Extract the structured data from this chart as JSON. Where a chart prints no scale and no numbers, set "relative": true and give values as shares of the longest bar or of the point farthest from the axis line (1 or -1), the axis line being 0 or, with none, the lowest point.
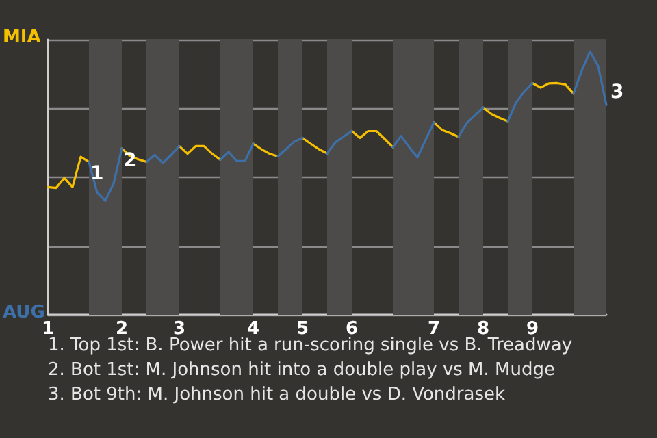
{
  "chart_data": {
    "type": "line",
    "relative": true,
    "categories": [
      "1",
      null,
      null,
      null,
      null,
      null,
      null,
      null,
      null,
      "2",
      null,
      null,
      null,
      null,
      null,
      null,
      "3",
      null,
      null,
      null,
      null,
      null,
      null,
      null,
      null,
      "4",
      null,
      null,
      null,
      null,
      null,
      "5",
      null,
      null,
      null,
      null,
      null,
      "6",
      null,
      null,
      null,
      null,
      null,
      null,
      null,
      null,
      null,
      "7",
      null,
      null,
      null,
      null,
      null,
      "8",
      null,
      null,
      null,
      null,
      null,
      "9",
      null,
      null,
      null,
      null,
      null,
      null,
      null,
      null,
      null
    ],
    "series": [
      {
        "name": "MIA",
        "color": "#f5c000",
        "values": [
          0.485,
          0.482,
          0.52,
          0.485,
          0.6,
          0.581,
          null,
          null,
          null,
          0.632,
          0.603,
          0.591,
          0.581,
          null,
          null,
          null,
          0.641,
          0.612,
          0.641,
          0.641,
          0.612,
          0.589,
          null,
          null,
          null,
          0.65,
          0.629,
          0.612,
          0.602,
          null,
          null,
          0.672,
          0.65,
          0.629,
          0.613,
          null,
          null,
          0.698,
          0.672,
          0.698,
          0.698,
          0.668,
          0.637,
          null,
          null,
          null,
          null,
          0.731,
          0.702,
          0.69,
          0.676,
          null,
          null,
          0.787,
          0.763,
          0.748,
          0.735,
          null,
          null,
          0.88,
          0.863,
          0.879,
          0.88,
          0.875,
          0.84,
          null,
          null,
          null,
          null
        ]
      },
      {
        "name": "AUG",
        "color": "#3d6fa8",
        "values": [
          null,
          null,
          null,
          null,
          null,
          0.581,
          0.464,
          0.433,
          0.499,
          0.632,
          null,
          null,
          0.581,
          0.607,
          0.577,
          0.607,
          0.641,
          null,
          null,
          null,
          null,
          0.589,
          0.619,
          0.584,
          0.584,
          0.65,
          null,
          null,
          0.602,
          0.629,
          0.658,
          0.672,
          null,
          null,
          0.613,
          0.655,
          0.677,
          0.698,
          null,
          null,
          null,
          null,
          0.637,
          0.679,
          0.637,
          0.598,
          0.665,
          0.731,
          null,
          null,
          0.676,
          0.728,
          0.758,
          0.787,
          null,
          null,
          0.735,
          0.806,
          0.848,
          0.88,
          null,
          null,
          null,
          null,
          0.84,
          0.927,
          1,
          0.945,
          0.797
        ]
      }
    ],
    "grid": "y",
    "marker": "none",
    "line_style": "solid",
    "annotations": [
      {
        "text": "1",
        "y": 0.581
      },
      {
        "text": "2",
        "y": 0.632
      },
      "3",
      "1. Top 1st: B. Power hit a run-scoring single vs B. Treadway",
      "2. Bot 1st: M. Johnson hit into a double play vs M. Mudge",
      "3. Bot 9th: M. Johnson hit a double vs D. Vondrasek"
    ]
  }
}
